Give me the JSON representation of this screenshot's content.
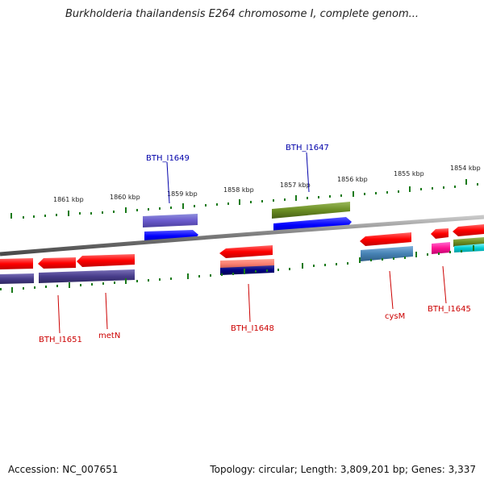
{
  "title": "Burkholderia thailandensis E264 chromosome I, complete genom...",
  "footer": {
    "accession": "Accession: NC_007651",
    "summary": "Topology: circular; Length: 3,809,201 bp; Genes: 3,337"
  },
  "ticks": [
    "1861 kbp",
    "1860 kbp",
    "1859 kbp",
    "1858 kbp",
    "1857 kbp",
    "1856 kbp",
    "1855 kbp",
    "1854 kbp"
  ],
  "gene_labels": {
    "bth_i1649": "BTH_I1649",
    "bth_i1647": "BTH_I1647",
    "bth_i1651": "BTH_I1651",
    "metn": "metN",
    "bth_i1648": "BTH_I1648",
    "cysm": "cysM",
    "bth_i1645": "BTH_I1645"
  },
  "colors": {
    "forward_label": "#0000aa",
    "reverse_label": "#cc0000",
    "tick_green": "#1a7a1a",
    "backbone": "#888888"
  }
}
